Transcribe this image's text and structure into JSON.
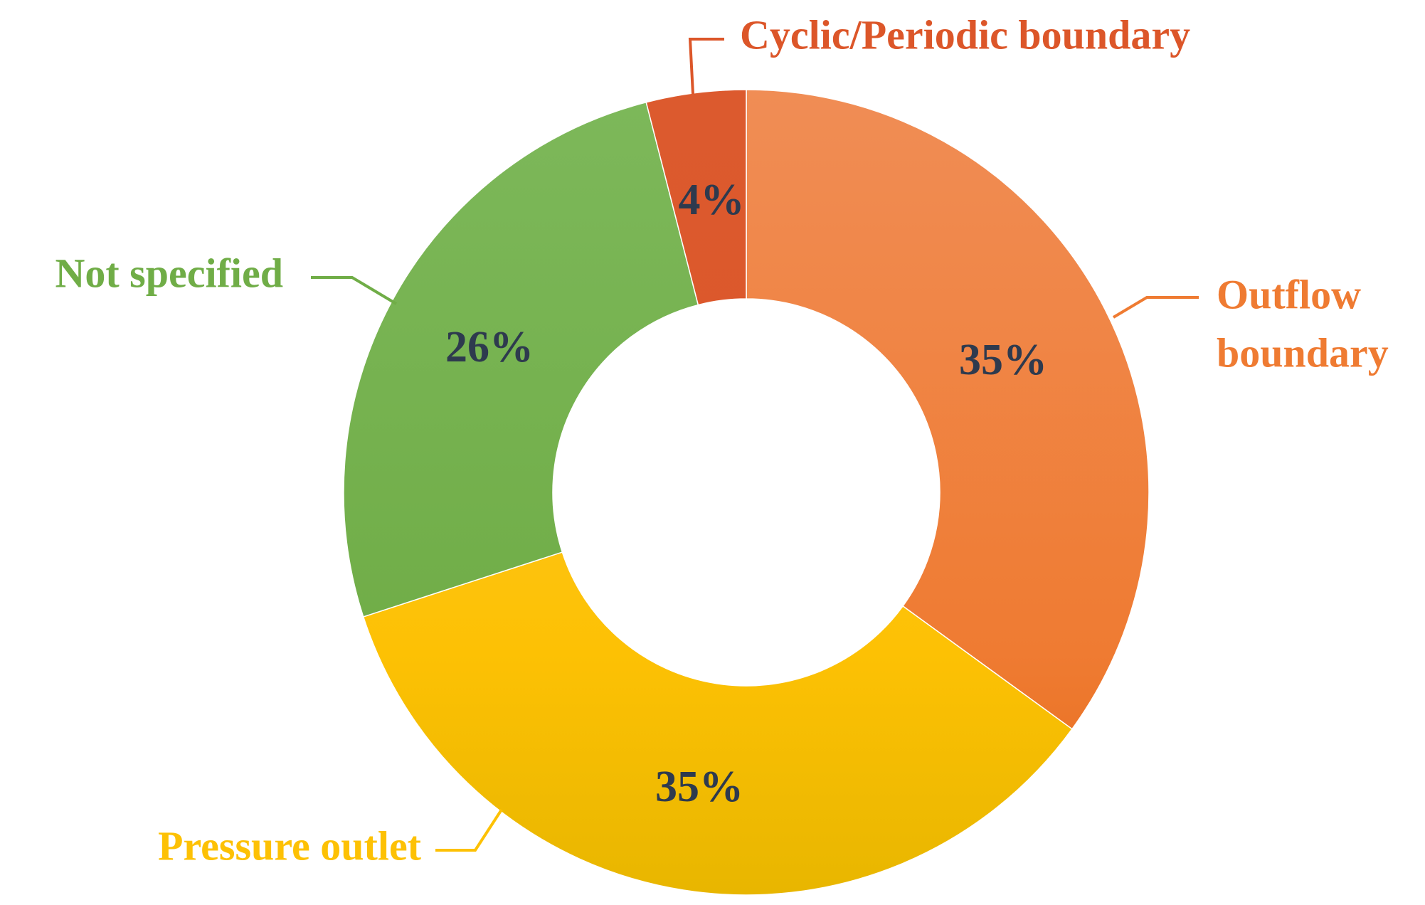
{
  "chart_data": {
    "type": "pie",
    "variant": "donut",
    "slices": [
      {
        "category": "Outflow boundary",
        "category_lines": [
          "Outflow",
          "boundary"
        ],
        "value": 35,
        "label": "35%",
        "color": "#ef7b32",
        "color_light": "#f08d55",
        "color_dark": "#e46a17"
      },
      {
        "category": "Pressure outlet",
        "category_lines": [
          "Pressure outlet"
        ],
        "value": 35,
        "label": "35%",
        "color": "#fdc104",
        "color_light": "#fec93a",
        "color_dark": "#e8b600"
      },
      {
        "category": "Not specified",
        "category_lines": [
          "Not specified"
        ],
        "value": 26,
        "label": "26%",
        "color": "#70ad47",
        "color_light": "#7db85a",
        "color_dark": "#62a234"
      },
      {
        "category": "Cyclic/Periodic boundary",
        "category_lines": [
          "Cyclic/Periodic boundary"
        ],
        "value": 4,
        "label": "4%",
        "color": "#dc5629",
        "color_light": "#dc5a2e",
        "color_dark": "#d65020"
      }
    ],
    "start_angle": "12 o'clock",
    "direction": "clockwise",
    "label_color": "#2e3a4e"
  }
}
